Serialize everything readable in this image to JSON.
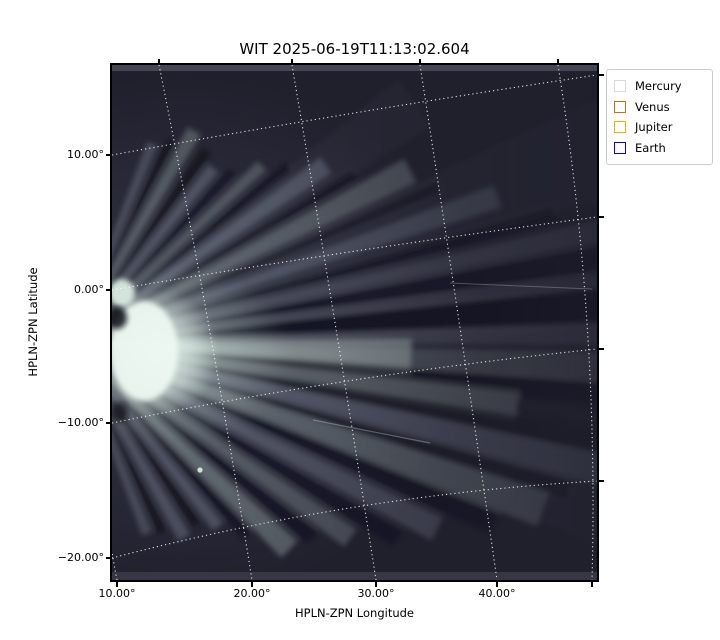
{
  "figure": {
    "title": "WIT 2025-06-19T11:13:02.604",
    "x_axis": {
      "label": "HPLN-ZPN Longitude",
      "tick_labels": [
        "10.00°",
        "20.00°",
        "30.00°",
        "40.00°"
      ]
    },
    "y_axis": {
      "label": "HPLN-ZPN Latitude",
      "tick_labels": [
        "10.00°",
        "0.00°",
        "−10.00°",
        "−20.00°"
      ]
    },
    "legend": {
      "items": [
        {
          "label": "Mercury",
          "marker_color": "#d9d9d9"
        },
        {
          "label": "Venus",
          "marker_color": "#d2691e"
        },
        {
          "label": "Jupiter",
          "marker_color": "#ffa500"
        },
        {
          "label": "Earth",
          "marker_color": "#0000ff"
        }
      ]
    }
  },
  "chart_data": {
    "type": "image",
    "title": "WIT 2025-06-19T11:13:02.604",
    "instrument": "WIT",
    "timestamp": "2025-06-19T11:13:02.604",
    "xlabel": "HPLN-ZPN Longitude",
    "ylabel": "HPLN-ZPN Latitude",
    "x_ticks_deg": [
      10,
      20,
      30,
      40
    ],
    "y_ticks_deg": [
      10,
      0,
      -10,
      -20
    ],
    "x_range_deg_approx": [
      9.5,
      50.5
    ],
    "y_range_deg_approx": [
      -21.5,
      16.5
    ],
    "grid": "dotted white curved coordinate grid (HPLN-ZPN projection); longitude lines lean left toward top, latitude lines rise toward the right",
    "legend_position": "upper right",
    "legend_entries": [
      "Mercury",
      "Venus",
      "Jupiter",
      "Earth"
    ],
    "background_color": "#ffffff",
    "sky_color": "#20202d",
    "image_description": "Dark indigo white-light heliospheric sky image with alternating bright and dark solar-wind streamer rays fanning out from the left edge; a very bright CME-like cloud hugs the left edge near −3° latitude with a small bright knot at 0° and a bright streamer extending right; faint thin streak near −10° latitude and a tiny bright dot below it; no planet markers fall inside the field of view"
  }
}
